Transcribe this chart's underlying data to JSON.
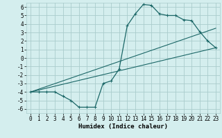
{
  "xlabel": "Humidex (Indice chaleur)",
  "bg_color": "#d4eeee",
  "grid_color": "#aacccc",
  "line_color": "#1a6666",
  "xlim": [
    -0.5,
    23.5
  ],
  "ylim": [
    -6.5,
    6.5
  ],
  "xticks": [
    0,
    1,
    2,
    3,
    4,
    5,
    6,
    7,
    8,
    9,
    10,
    11,
    12,
    13,
    14,
    15,
    16,
    17,
    18,
    19,
    20,
    21,
    22,
    23
  ],
  "yticks": [
    -6,
    -5,
    -4,
    -3,
    -2,
    -1,
    0,
    1,
    2,
    3,
    4,
    5,
    6
  ],
  "main_data_x": [
    0,
    1,
    2,
    3,
    4,
    5,
    6,
    7,
    8,
    9,
    10,
    11,
    12,
    13,
    14,
    15,
    16,
    17,
    18,
    19,
    20,
    21,
    22,
    23
  ],
  "main_data_y": [
    -4,
    -4,
    -4,
    -4,
    -4.5,
    -5,
    -5.8,
    -5.8,
    -5.8,
    -3,
    -2.7,
    -1.3,
    3.8,
    5.2,
    6.3,
    6.2,
    5.2,
    5.0,
    5.0,
    4.5,
    4.4,
    3.1,
    2.0,
    1.2
  ],
  "line1_x": [
    0,
    23
  ],
  "line1_y": [
    -4,
    1.2
  ],
  "line2_x": [
    0,
    23
  ],
  "line2_y": [
    -4,
    3.5
  ],
  "tick_fontsize": 5.5,
  "label_fontsize": 6.5
}
